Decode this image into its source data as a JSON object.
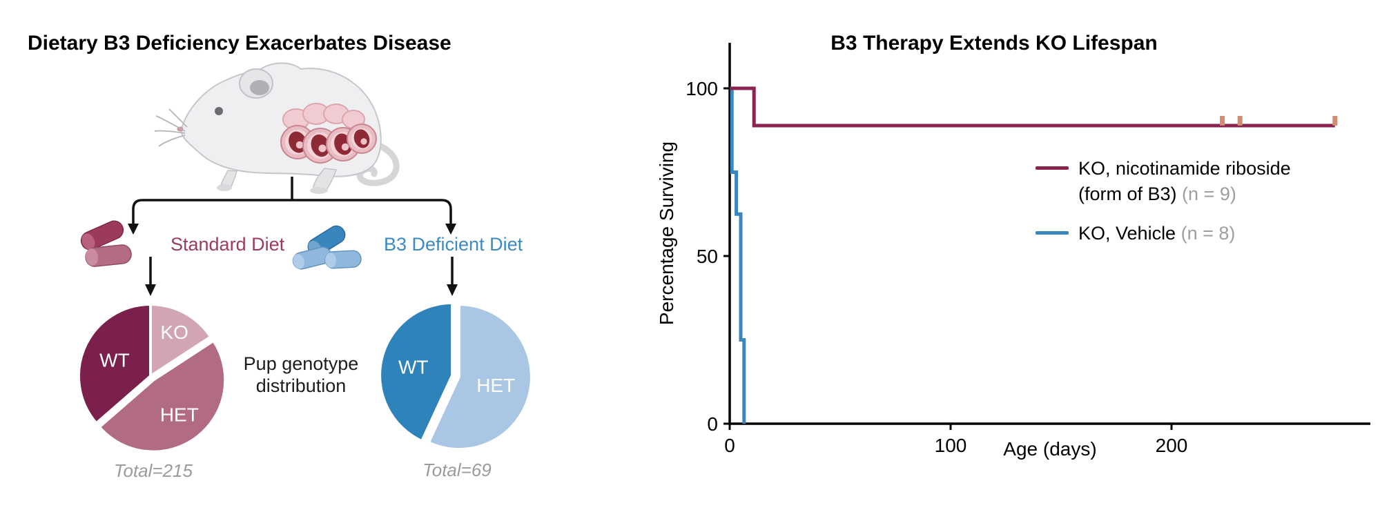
{
  "background": "#ffffff",
  "left_panel": {
    "title": "Dietary B3 Deficiency Exacerbates Disease",
    "mouse_illustration": "pregnant-mouse-with-embryos",
    "caption_line1": "Pup genotype",
    "caption_line2": "distribution",
    "arms": [
      {
        "label": "Standard Diet",
        "label_color": "#9E3A60",
        "pellet_icon": "food-pellets",
        "pellet_dark": "#9C3A5B",
        "pellet_light": "#B46B84"
      },
      {
        "label": "B3 Deficient Diet",
        "label_color": "#3A8AC4",
        "pellet_icon": "food-pellets",
        "pellet_dark": "#3985BE",
        "pellet_light": "#8FB8DC"
      }
    ]
  },
  "right_panel": {
    "legend": [
      {
        "label_line1": "KO, nicotinamide riboside",
        "label_line2": "(form of B3)",
        "n_label": "(n = 9)",
        "color": "#8B2350"
      },
      {
        "label_line1": "KO, Vehicle",
        "label_line2": "",
        "n_label": "(n = 8)",
        "color": "#3A86BF"
      }
    ]
  },
  "chart_data": [
    {
      "type": "pie",
      "name": "standard-diet-pup-genotype-distribution",
      "total_label": "Total=215",
      "total": 215,
      "slices": [
        {
          "label": "KO",
          "fraction": 0.158,
          "color": "#D2A5B6",
          "explode": 0,
          "label_r": 0.7
        },
        {
          "label": "HET",
          "fraction": 0.478,
          "color": "#B26B85",
          "explode": 7,
          "label_r": 0.6
        },
        {
          "label": "WT",
          "fraction": 0.364,
          "color": "#7B1F4C",
          "explode": 0,
          "label_r": 0.55
        }
      ]
    },
    {
      "type": "pie",
      "name": "b3-deficient-diet-pup-genotype-distribution",
      "total_label": "Total=69",
      "total": 69,
      "slices": [
        {
          "label": "HET",
          "fraction": 0.569,
          "color": "#A9C6E4",
          "explode": 5,
          "label_r": 0.52
        },
        {
          "label": "WT",
          "fraction": 0.431,
          "color": "#2F83BB",
          "explode": 5,
          "label_r": 0.55
        }
      ]
    },
    {
      "type": "line",
      "name": "kaplan-meier-survival",
      "title": "B3 Therapy Extends KO Lifespan",
      "xlabel": "Age (days)",
      "ylabel": "Percentage Surviving",
      "xlim": [
        0,
        290
      ],
      "ylim": [
        0,
        100
      ],
      "xticks": [
        0,
        100,
        200
      ],
      "yticks": [
        0,
        50,
        100
      ],
      "grid": false,
      "legend_position": "center-right",
      "series": [
        {
          "name": "KO, nicotinamide riboside (form of B3)",
          "n": 9,
          "color": "#8B2350",
          "points": [
            [
              0,
              100
            ],
            [
              11,
              100
            ],
            [
              11,
              88.9
            ],
            [
              274,
              88.9
            ]
          ],
          "censor_days": [
            223,
            231,
            274
          ],
          "censor_color": "#D28C6F"
        },
        {
          "name": "KO, Vehicle",
          "n": 8,
          "color": "#3A86BF",
          "points": [
            [
              0,
              100
            ],
            [
              1,
              100
            ],
            [
              1,
              75
            ],
            [
              3,
              75
            ],
            [
              3,
              62.5
            ],
            [
              5,
              62.5
            ],
            [
              5,
              25
            ],
            [
              6.5,
              25
            ],
            [
              6.5,
              0
            ]
          ],
          "censor_days": [],
          "censor_color": "#D28C6F"
        }
      ]
    }
  ]
}
